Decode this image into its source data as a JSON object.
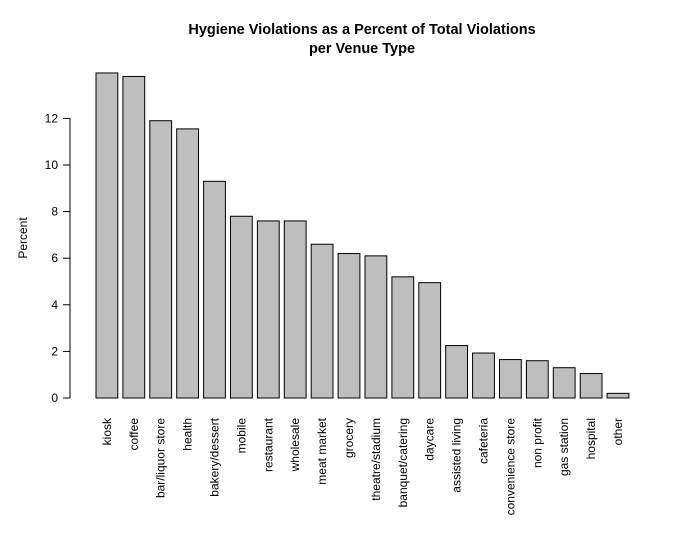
{
  "chart_data": {
    "type": "bar",
    "title": "Hygiene Violations as a Percent of Total Violations",
    "subtitle": "per Venue Type",
    "xlabel": "",
    "ylabel": "Percent",
    "ylim": [
      0,
      14
    ],
    "yticks": [
      0,
      2,
      4,
      6,
      8,
      10,
      12
    ],
    "grid": false,
    "categories": [
      "kiosk",
      "coffee",
      "bar/liquor store",
      "health",
      "bakery/dessert",
      "mobile",
      "restaurant",
      "wholesale",
      "meat market",
      "grocery",
      "theatre/stadium",
      "banquet/catering",
      "daycare",
      "assisted living",
      "cafeteria",
      "convenience store",
      "non profit",
      "gas station",
      "hospital",
      "other"
    ],
    "values": [
      13.95,
      13.8,
      11.9,
      11.55,
      9.3,
      7.8,
      7.6,
      7.6,
      6.6,
      6.2,
      6.1,
      5.2,
      4.95,
      2.25,
      1.93,
      1.65,
      1.6,
      1.3,
      1.05,
      0.2
    ],
    "colors": {
      "bar_fill": "#bebebe",
      "bar_stroke": "#000000",
      "axis": "#000000"
    }
  }
}
